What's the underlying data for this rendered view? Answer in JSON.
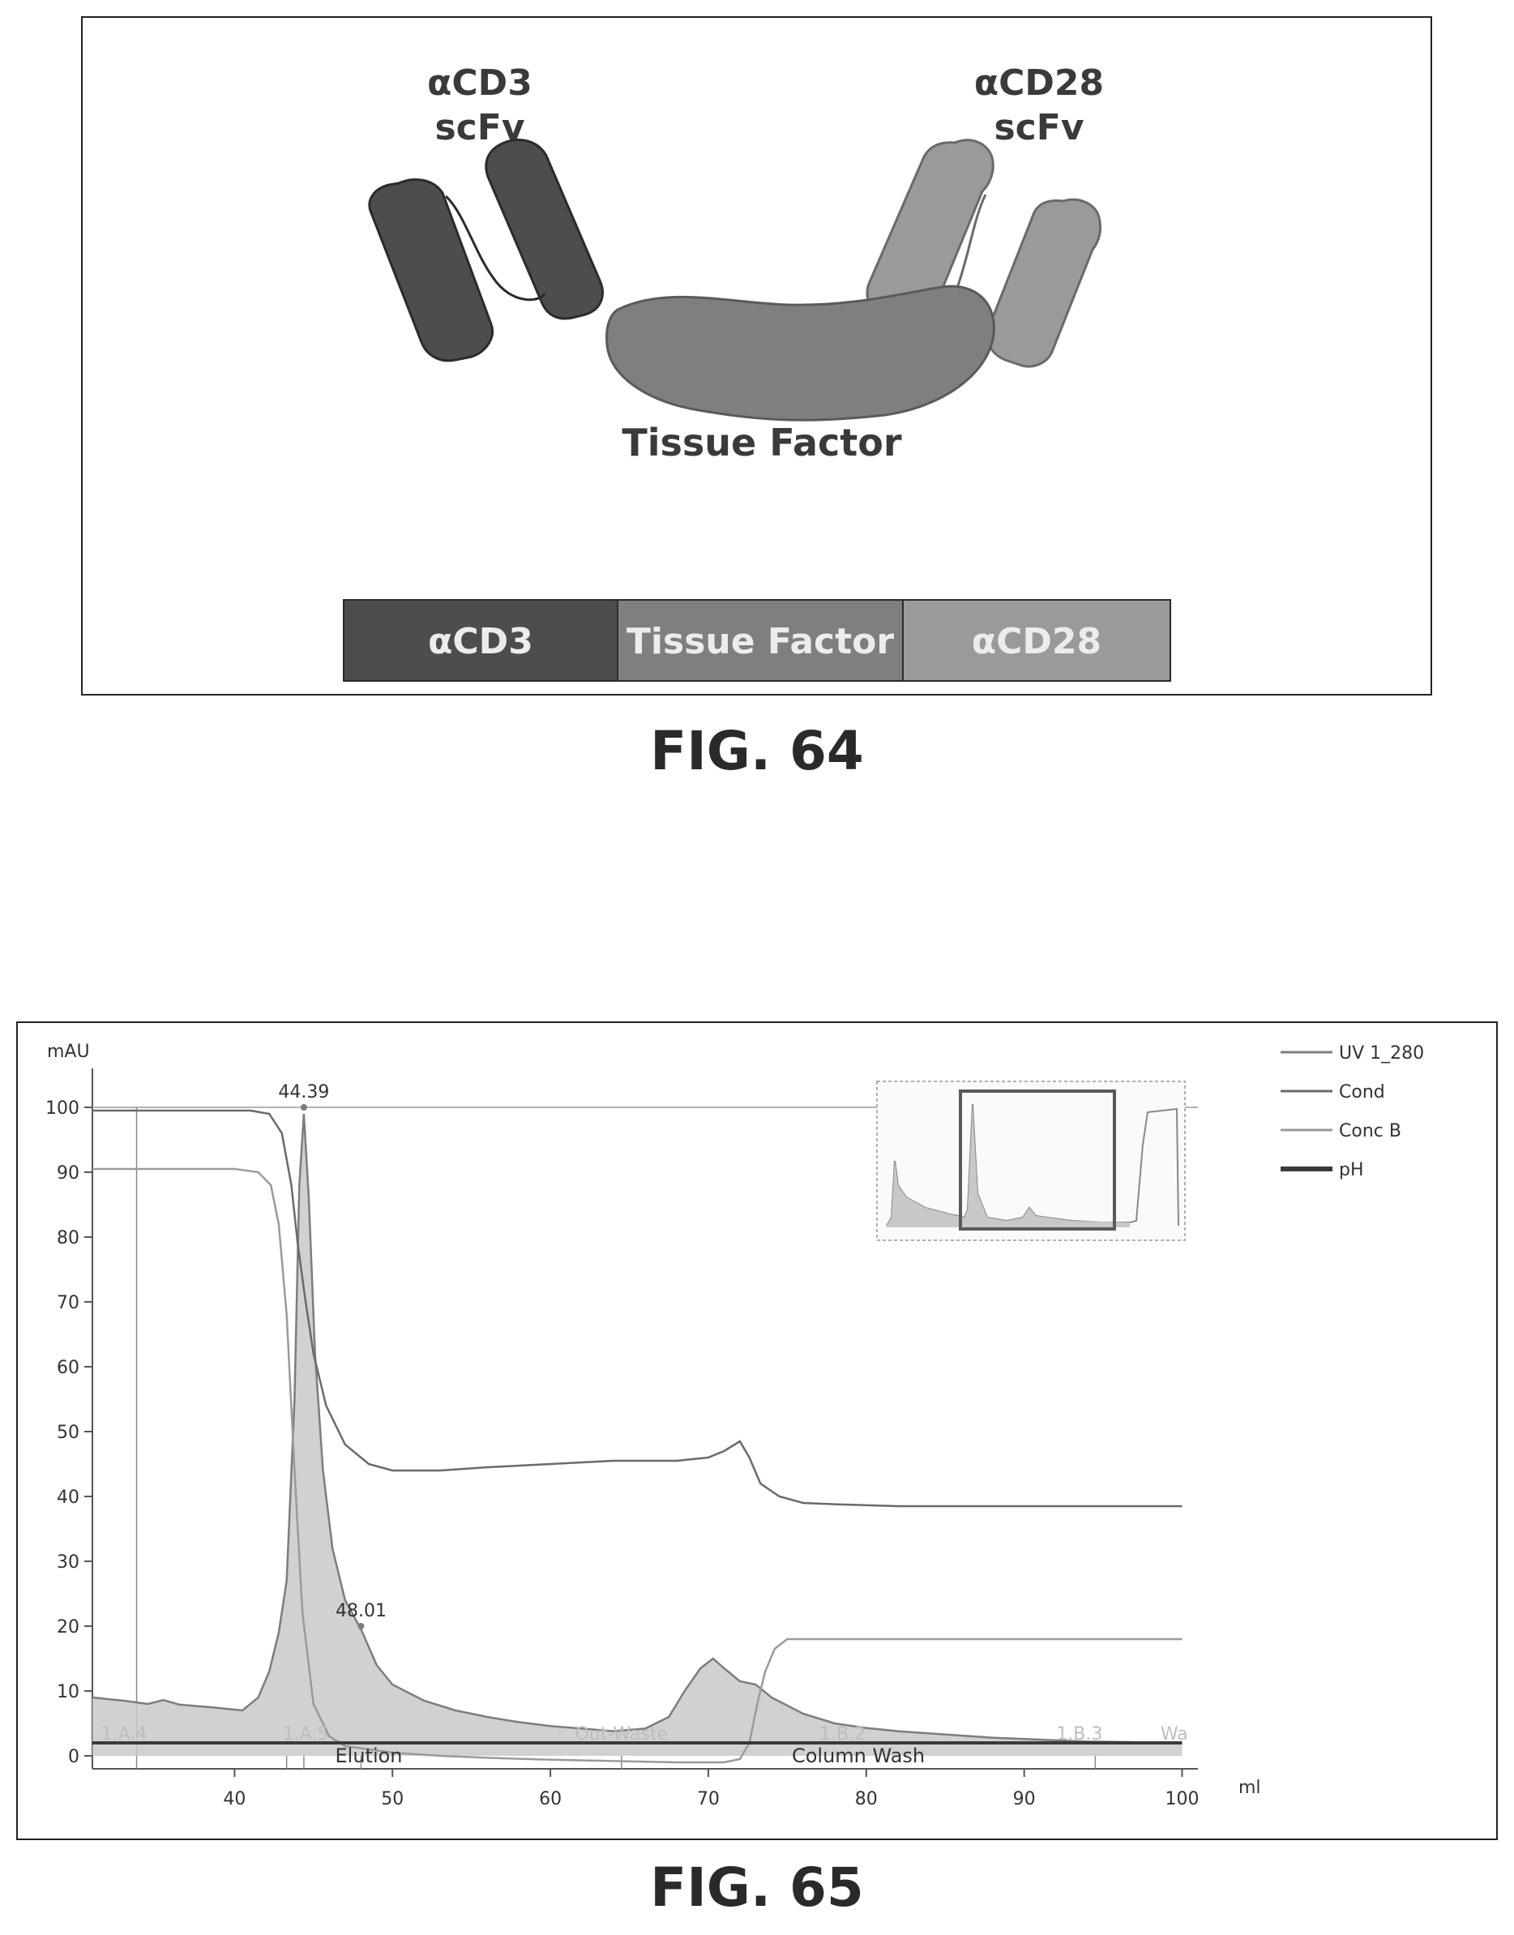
{
  "fig64": {
    "caption": "FIG. 64",
    "labels": {
      "acd3_line1": "αCD3",
      "acd3_line2": "scFv",
      "acd28_line1": "αCD28",
      "acd28_line2": "scFv",
      "tissue_factor": "Tissue Factor"
    },
    "bar": [
      "αCD3",
      "Tissue Factor",
      "αCD28"
    ],
    "colors": {
      "acd3": "#4d4d4d",
      "tissue_factor": "#7f7f7f",
      "acd28": "#9a9a9a"
    }
  },
  "fig65": {
    "caption": "FIG. 65"
  },
  "chart_data": {
    "type": "line",
    "ylabel": "mAU",
    "xlabel": "ml",
    "xlim": [
      31,
      101
    ],
    "ylim": [
      -2,
      106
    ],
    "x_ticks": [
      40,
      50,
      60,
      70,
      80,
      90,
      100
    ],
    "y_ticks": [
      0,
      10,
      20,
      30,
      40,
      50,
      60,
      70,
      80,
      90,
      100
    ],
    "legend": [
      "UV 1_280",
      "Cond",
      "Conc B",
      "pH"
    ],
    "legend_position": "top-right",
    "peak_labels": [
      {
        "text": "44.39",
        "x": 44.39,
        "y": 100
      },
      {
        "text": "48.01",
        "x": 48.01,
        "y": 20
      }
    ],
    "phase_labels": [
      {
        "text": "Elution",
        "x": 48.5
      },
      {
        "text": "Column Wash",
        "x": 79.5
      }
    ],
    "faint_labels": [
      {
        "text": "1.A.4",
        "x": 33
      },
      {
        "text": "1.A.5",
        "x": 44.5
      },
      {
        "text": "Out-Waste",
        "x": 64.5
      },
      {
        "text": "1.B.2",
        "x": 78.5
      },
      {
        "text": "1.B.3",
        "x": 93.5
      },
      {
        "text": "Wa",
        "x": 99.5
      }
    ],
    "series": [
      {
        "name": "UV 1_280",
        "color": "#7d7d7d",
        "fill": true,
        "x": [
          31,
          33,
          34.5,
          35.5,
          36.5,
          38.5,
          40.5,
          41.5,
          42.2,
          42.8,
          43.3,
          43.8,
          44.1,
          44.39,
          44.7,
          45.1,
          45.6,
          46.2,
          47,
          48.01,
          49,
          50,
          52,
          54,
          56,
          58,
          60,
          62,
          64,
          66,
          67.5,
          68.5,
          69.5,
          70.3,
          71,
          72,
          73,
          74,
          76,
          78,
          80,
          82,
          85,
          88,
          91,
          94,
          97,
          100
        ],
        "y": [
          9,
          8.5,
          8,
          8.6,
          7.9,
          7.5,
          7,
          9,
          13,
          19,
          27,
          55,
          88,
          99,
          86,
          62,
          44,
          32,
          24,
          19.5,
          14,
          11,
          8.5,
          7,
          6,
          5.2,
          4.6,
          4.2,
          3.8,
          4.2,
          6,
          10,
          13.5,
          15,
          13.5,
          11.5,
          11,
          9,
          6.5,
          5,
          4.3,
          3.8,
          3.3,
          2.8,
          2.5,
          2.2,
          2.1,
          2
        ]
      },
      {
        "name": "Cond",
        "color": "#6a6a6a",
        "fill": false,
        "x": [
          31,
          35,
          41,
          42.2,
          43,
          43.6,
          44,
          44.5,
          45,
          45.8,
          47,
          48.5,
          50,
          53,
          56,
          60,
          64,
          68,
          70,
          71,
          72,
          72.6,
          73.3,
          74.5,
          76,
          78,
          82,
          86,
          90,
          95,
          100
        ],
        "y": [
          99.5,
          99.5,
          99.5,
          99,
          96,
          88,
          79,
          70,
          62,
          54,
          48,
          45,
          44,
          44,
          44.5,
          45,
          45.5,
          45.5,
          46,
          47,
          48.5,
          46,
          42,
          40,
          39,
          38.8,
          38.5,
          38.5,
          38.5,
          38.5,
          38.5
        ]
      },
      {
        "name": "Conc B",
        "color": "#9a9a9a",
        "fill": false,
        "x": [
          31,
          35,
          40,
          41.5,
          42.3,
          42.8,
          43.3,
          43.8,
          44.3,
          45,
          46,
          47,
          48.5,
          50,
          53,
          56,
          60,
          64,
          68,
          71,
          72,
          72.6,
          73.1,
          73.6,
          74.2,
          75,
          77,
          80,
          85,
          90,
          95,
          100
        ],
        "y": [
          90.5,
          90.5,
          90.5,
          90,
          88,
          82,
          68,
          44,
          22,
          8,
          3,
          1.5,
          1,
          0.5,
          0,
          -0.3,
          -0.6,
          -0.8,
          -1,
          -1,
          -0.5,
          2,
          8,
          13,
          16.5,
          18,
          18,
          18,
          18,
          18,
          18,
          18
        ]
      },
      {
        "name": "pH",
        "color": "#3a3a3a",
        "fill": false,
        "x": [
          31,
          100
        ],
        "y": [
          2,
          2
        ]
      }
    ]
  }
}
